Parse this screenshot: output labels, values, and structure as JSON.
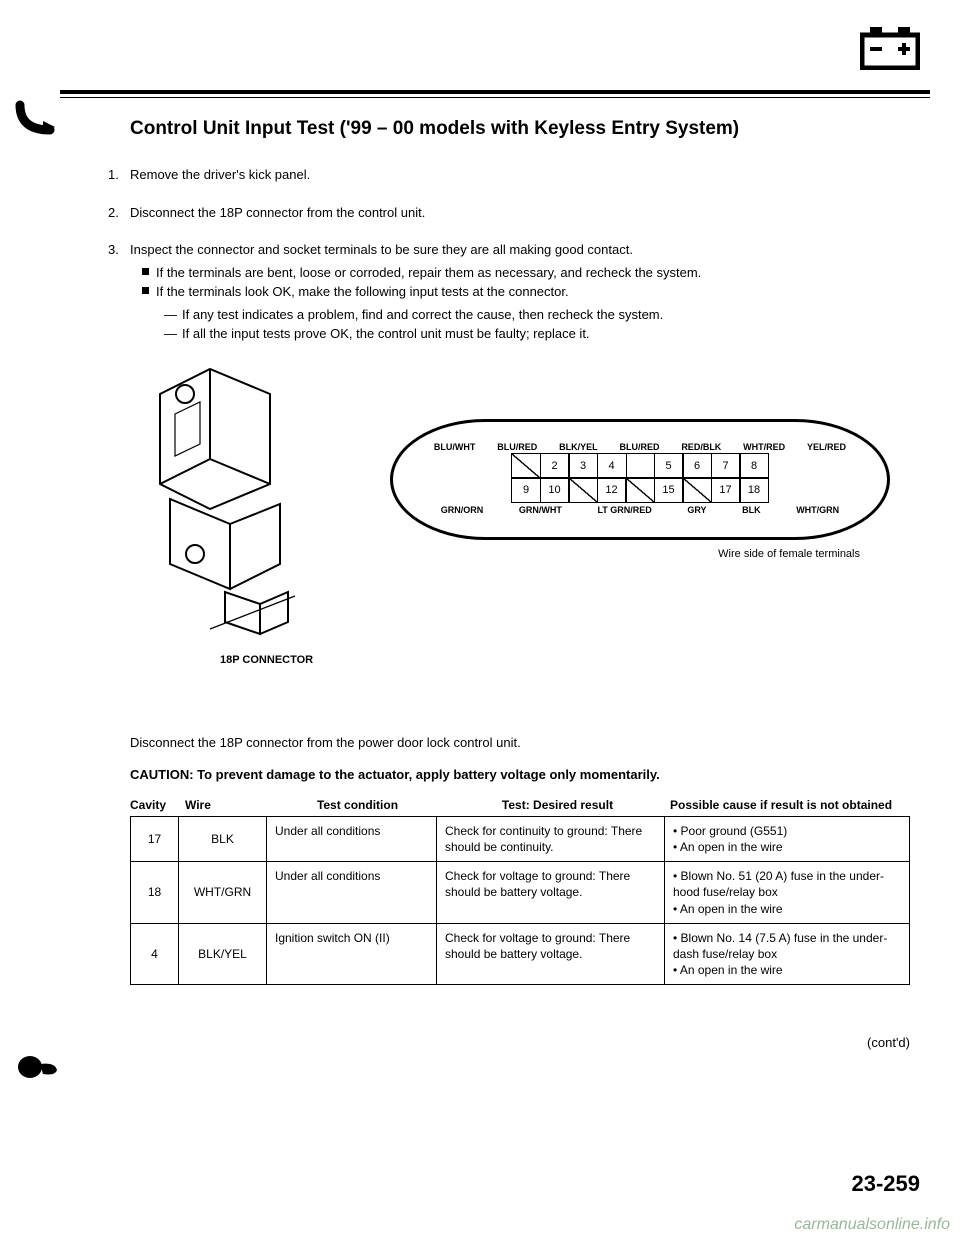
{
  "title": "Control Unit Input Test ('99 – 00 models with Keyless Entry System)",
  "steps": {
    "s1": "Remove the driver's kick panel.",
    "s2": "Disconnect the 18P connector from the control unit.",
    "s3": "Inspect the connector and socket terminals to be sure they are all making good contact.",
    "s3a": "If the terminals are bent, loose or corroded, repair them as necessary, and recheck the system.",
    "s3b": "If the terminals look OK, make the following input tests at the connector.",
    "s3b1": "If any test indicates a problem, find and correct the cause, then recheck the system.",
    "s3b2": "If all the input tests prove OK, the control unit must be faulty; replace it."
  },
  "connector_label": "18P CONNECTOR",
  "pinout": {
    "top_labels": [
      "BLU/WHT",
      "BLU/RED",
      "BLK/YEL",
      "BLU/RED",
      "RED/BLK",
      "WHT/RED",
      "YEL/RED"
    ],
    "row1": [
      "",
      "2",
      "3",
      "4",
      "",
      "5",
      "6",
      "7",
      "8"
    ],
    "row1_diag": [
      true,
      false,
      false,
      false,
      false,
      false,
      false,
      false,
      false
    ],
    "row1_empty": [
      false,
      false,
      false,
      false,
      true,
      false,
      false,
      false,
      false
    ],
    "row2": [
      "9",
      "10",
      "",
      "12",
      "",
      "15",
      "",
      "17",
      "18"
    ],
    "row2_diag": [
      false,
      false,
      true,
      false,
      true,
      false,
      true,
      false,
      false
    ],
    "bottom_labels": [
      "GRN/ORN",
      "GRN/WHT",
      "LT GRN/RED",
      "GRY",
      "BLK",
      "WHT/GRN"
    ],
    "wire_note": "Wire side of female terminals"
  },
  "disconnect_text": "Disconnect the 18P connector from the power door lock control unit.",
  "caution": "CAUTION: To prevent damage to the actuator, apply battery voltage only momentarily.",
  "table": {
    "headers": {
      "cavity": "Cavity",
      "wire": "Wire",
      "cond": "Test condition",
      "result": "Test: Desired result",
      "cause": "Possible cause if result is not obtained"
    },
    "rows": [
      {
        "cavity": "17",
        "wire": "BLK",
        "cond": "Under all conditions",
        "result": "Check for continuity to ground: There should be continuity.",
        "cause": "• Poor ground (G551)\n• An open in the wire"
      },
      {
        "cavity": "18",
        "wire": "WHT/GRN",
        "cond": "Under all conditions",
        "result": "Check for voltage to ground: There should be battery voltage.",
        "cause": "• Blown No. 51 (20 A) fuse in the under-hood fuse/relay box\n• An open in the wire"
      },
      {
        "cavity": "4",
        "wire": "BLK/YEL",
        "cond": "Ignition switch ON (II)",
        "result": "Check for voltage to ground: There should be battery voltage.",
        "cause": "• Blown No. 14 (7.5 A) fuse in the under-dash fuse/relay box\n• An open in the wire"
      }
    ]
  },
  "contd": "(cont'd)",
  "pagenum": "23-259",
  "watermark": "carmanualsonline.info"
}
